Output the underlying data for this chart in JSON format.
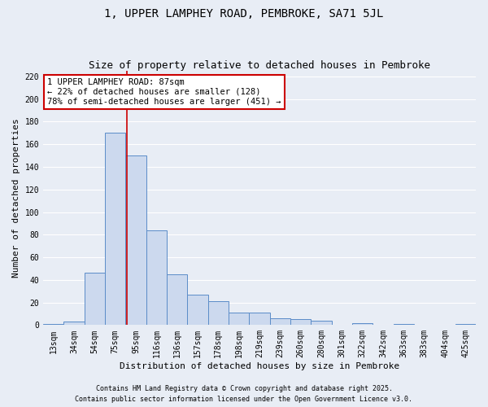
{
  "title": "1, UPPER LAMPHEY ROAD, PEMBROKE, SA71 5JL",
  "subtitle": "Size of property relative to detached houses in Pembroke",
  "xlabel": "Distribution of detached houses by size in Pembroke",
  "ylabel": "Number of detached properties",
  "categories": [
    "13sqm",
    "34sqm",
    "54sqm",
    "75sqm",
    "95sqm",
    "116sqm",
    "136sqm",
    "157sqm",
    "178sqm",
    "198sqm",
    "219sqm",
    "239sqm",
    "260sqm",
    "280sqm",
    "301sqm",
    "322sqm",
    "342sqm",
    "363sqm",
    "383sqm",
    "404sqm",
    "425sqm"
  ],
  "bar_values": [
    1,
    3,
    46,
    170,
    150,
    84,
    45,
    27,
    21,
    11,
    11,
    6,
    5,
    4,
    0,
    2,
    0,
    1,
    0,
    0,
    1
  ],
  "bar_color": "#ccd9ee",
  "bar_edge_color": "#5b8cc8",
  "background_color": "#e8edf5",
  "grid_color": "#ffffff",
  "property_line_x": 3.55,
  "annotation_text": "1 UPPER LAMPHEY ROAD: 87sqm\n← 22% of detached houses are smaller (128)\n78% of semi-detached houses are larger (451) →",
  "annotation_box_color": "#ffffff",
  "annotation_border_color": "#cc0000",
  "ylim": [
    0,
    225
  ],
  "yticks": [
    0,
    20,
    40,
    60,
    80,
    100,
    120,
    140,
    160,
    180,
    200,
    220
  ],
  "footnote1": "Contains HM Land Registry data © Crown copyright and database right 2025.",
  "footnote2": "Contains public sector information licensed under the Open Government Licence v3.0.",
  "title_fontsize": 10,
  "subtitle_fontsize": 9,
  "tick_fontsize": 7,
  "ylabel_fontsize": 8,
  "xlabel_fontsize": 8,
  "annotation_fontsize": 7.5,
  "footnote_fontsize": 6
}
